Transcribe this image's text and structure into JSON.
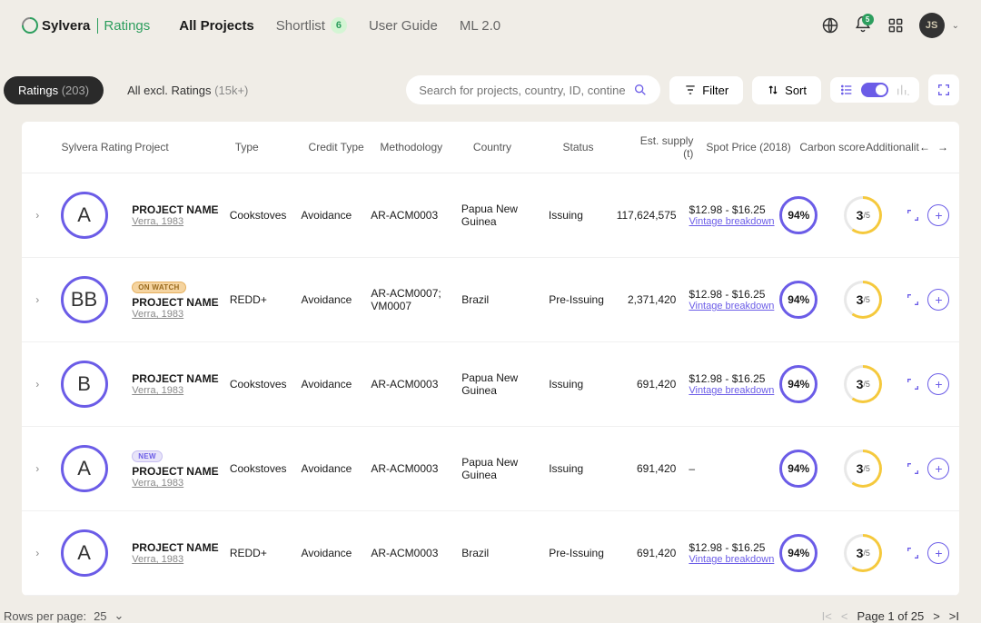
{
  "brand": {
    "name": "Sylvera",
    "product": "Ratings"
  },
  "nav": {
    "items": [
      {
        "label": "All Projects",
        "active": true
      },
      {
        "label": "Shortlist",
        "badge": "6"
      },
      {
        "label": "User Guide"
      },
      {
        "label": "ML 2.0"
      }
    ]
  },
  "user": {
    "initials": "JS",
    "notification_count": "5"
  },
  "tabs": {
    "active": {
      "label": "Ratings",
      "count": "(203)"
    },
    "other": {
      "label": "All excl. Ratings",
      "count": "(15k+)"
    }
  },
  "search": {
    "placeholder": "Search for projects, country, ID, continent..."
  },
  "toolbar": {
    "filter": "Filter",
    "sort": "Sort"
  },
  "columns": {
    "rating": "Sylvera Rating",
    "project": "Project",
    "type": "Type",
    "credit": "Credit Type",
    "method": "Methodology",
    "country": "Country",
    "status": "Status",
    "supply": "Est. supply (t)",
    "spot": "Spot Price (2018)",
    "carbon": "Carbon score",
    "addl": "Additionalit"
  },
  "colors": {
    "accent": "#6b5ce7",
    "green": "#2d9e5e",
    "yellow": "#f5c93d",
    "bg": "#f0ede7"
  },
  "shared": {
    "project_name": "PROJECT NAME",
    "registry": "Verra, 1983",
    "price_range": "$12.98 - $16.25",
    "vintage_link": "Vintage breakdown",
    "carbon_pct": "94%",
    "addl_score": "3",
    "addl_max": "/5"
  },
  "rows": [
    {
      "rating": "A",
      "tag": null,
      "type": "Cookstoves",
      "credit": "Avoidance",
      "method": "AR-ACM0003",
      "country": "Papua New Guinea",
      "status": "Issuing",
      "supply": "117,624,575",
      "spot": true
    },
    {
      "rating": "BB",
      "tag": "ON WATCH",
      "tag_class": "watch",
      "type": "REDD+",
      "credit": "Avoidance",
      "method": "AR-ACM0007; VM0007",
      "country": "Brazil",
      "status": "Pre-Issuing",
      "supply": "2,371,420",
      "spot": true
    },
    {
      "rating": "B",
      "tag": null,
      "type": "Cookstoves",
      "credit": "Avoidance",
      "method": "AR-ACM0003",
      "country": "Papua New Guinea",
      "status": "Issuing",
      "supply": "691,420",
      "spot": true
    },
    {
      "rating": "A",
      "tag": "NEW",
      "tag_class": "new",
      "type": "Cookstoves",
      "credit": "Avoidance",
      "method": "AR-ACM0003",
      "country": "Papua New Guinea",
      "status": "Issuing",
      "supply": "691,420",
      "spot": false
    },
    {
      "rating": "A",
      "tag": null,
      "type": "REDD+",
      "credit": "Avoidance",
      "method": "AR-ACM0003",
      "country": "Brazil",
      "status": "Pre-Issuing",
      "supply": "691,420",
      "spot": true
    }
  ],
  "footer": {
    "rows_label": "Rows per page:",
    "rows_value": "25",
    "page_text": "Page 1 of 25"
  }
}
